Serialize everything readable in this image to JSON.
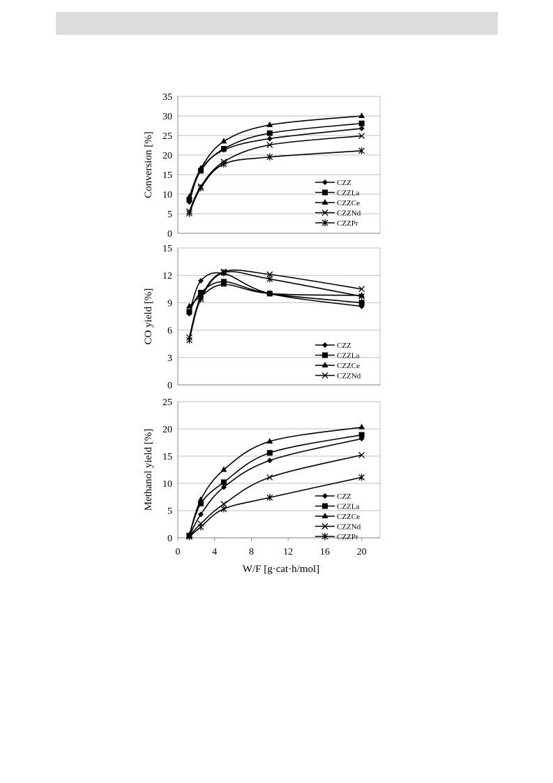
{
  "page": {
    "header_bar_color": "#dcdcdc",
    "text_color": "#000000",
    "grid_color": "#bfbfbf",
    "line_color": "#000000"
  },
  "chart_data": [
    {
      "type": "line",
      "xlabel": "",
      "ylabel": "Conversion [%]",
      "ylim": [
        0,
        35
      ],
      "yticks": [
        "0",
        "5",
        "10",
        "15",
        "20",
        "25",
        "30",
        "35"
      ],
      "xlim": [
        0,
        22
      ],
      "grid": true,
      "legend_position": "bottom-right",
      "x": [
        1.25,
        2.5,
        5,
        10,
        20
      ],
      "series": [
        {
          "name": "CZZ",
          "marker": "diamond",
          "values": [
            8.0,
            16.2,
            21.3,
            24.2,
            26.8
          ]
        },
        {
          "name": "CZZLa",
          "marker": "square",
          "values": [
            8.6,
            16.0,
            21.6,
            25.6,
            28.1
          ]
        },
        {
          "name": "CZZCe",
          "marker": "triangle",
          "values": [
            9.3,
            16.6,
            23.5,
            27.7,
            30.0
          ]
        },
        {
          "name": "CZZNd",
          "marker": "x",
          "values": [
            5.6,
            12.0,
            18.3,
            22.6,
            24.9
          ]
        },
        {
          "name": "CZZPr",
          "marker": "star",
          "values": [
            5.1,
            11.6,
            17.7,
            19.5,
            21.1
          ]
        }
      ]
    },
    {
      "type": "line",
      "xlabel": "",
      "ylabel": "CO yield [%]",
      "ylim": [
        0,
        15
      ],
      "yticks": [
        "0",
        "3",
        "6",
        "9",
        "12",
        "15"
      ],
      "xlim": [
        0,
        22
      ],
      "grid": true,
      "legend_position": "bottom-right",
      "x": [
        1.25,
        2.5,
        5,
        10,
        20
      ],
      "series": [
        {
          "name": "CZZ",
          "marker": "diamond",
          "values": [
            7.8,
            11.4,
            12.2,
            10.0,
            8.6
          ]
        },
        {
          "name": "CZZLa",
          "marker": "square",
          "values": [
            8.0,
            10.1,
            11.3,
            10.0,
            9.0
          ]
        },
        {
          "name": "CZZCe",
          "marker": "triangle",
          "values": [
            8.6,
            9.7,
            11.0,
            10.0,
            9.8
          ]
        },
        {
          "name": "CZZNd",
          "marker": "x",
          "values": [
            5.2,
            9.6,
            12.4,
            12.1,
            10.5
          ]
        },
        {
          "name": "",
          "marker": "star",
          "values": [
            4.9,
            9.4,
            12.3,
            11.6,
            9.7
          ]
        }
      ]
    },
    {
      "type": "line",
      "xlabel": "W/F [g·cat·h/mol]",
      "ylabel": "Methanol yield [%]",
      "ylim": [
        0,
        25
      ],
      "yticks": [
        "0",
        "5",
        "10",
        "15",
        "20",
        "25"
      ],
      "xlim": [
        0,
        22
      ],
      "xticks": [
        "0",
        "4",
        "8",
        "12",
        "16",
        "20"
      ],
      "grid": true,
      "legend_position": "bottom-right",
      "x": [
        1.25,
        2.5,
        5,
        10,
        20
      ],
      "series": [
        {
          "name": "CZZ",
          "marker": "diamond",
          "values": [
            0.3,
            4.3,
            9.3,
            14.2,
            18.2
          ]
        },
        {
          "name": "CZZLa",
          "marker": "square",
          "values": [
            0.4,
            6.3,
            10.2,
            15.6,
            18.9
          ]
        },
        {
          "name": "CZZCe",
          "marker": "triangle",
          "values": [
            0.5,
            7.0,
            12.5,
            17.7,
            20.3
          ]
        },
        {
          "name": "CZZNd",
          "marker": "x",
          "values": [
            0.3,
            2.6,
            6.2,
            11.1,
            15.2
          ]
        },
        {
          "name": "CZZPr",
          "marker": "star",
          "values": [
            0.2,
            2.0,
            5.3,
            7.4,
            11.1
          ]
        }
      ]
    }
  ]
}
